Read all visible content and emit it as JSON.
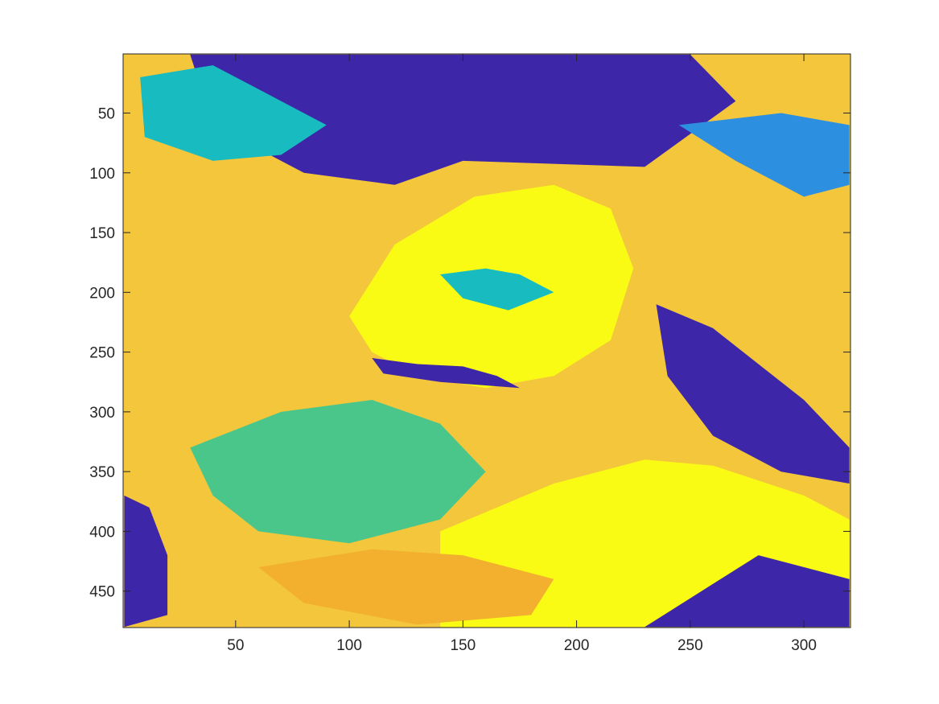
{
  "chart_data": {
    "type": "heatmap",
    "title": "",
    "xlabel": "",
    "ylabel": "",
    "xlim": [
      0.5,
      320.5
    ],
    "ylim": [
      0.5,
      480.5
    ],
    "y_direction": "reverse",
    "grid": false,
    "colormap": "parula",
    "colors": [
      "#3e26a8",
      "#2d8fe0",
      "#18bcc0",
      "#4ac68a",
      "#f2b02e",
      "#f4c63c",
      "#f9fb15"
    ],
    "xticks": [
      50,
      100,
      150,
      200,
      250,
      300
    ],
    "xtick_labels": [
      "50",
      "100",
      "150",
      "200",
      "250",
      "300"
    ],
    "yticks": [
      50,
      100,
      150,
      200,
      250,
      300,
      350,
      400,
      450
    ],
    "ytick_labels": [
      "50",
      "100",
      "150",
      "200",
      "250",
      "300",
      "350",
      "400",
      "450"
    ],
    "image_size": {
      "cols": 320,
      "rows": 480
    },
    "regions": [
      {
        "color_index": 0,
        "x": [
          30,
          60,
          120,
          160,
          200,
          250,
          270,
          230,
          150,
          120,
          80,
          40
        ],
        "y": [
          1,
          1,
          1,
          1,
          1,
          1,
          40,
          95,
          90,
          110,
          100,
          60
        ]
      },
      {
        "color_index": 2,
        "x": [
          8,
          40,
          60,
          90,
          70,
          40,
          10
        ],
        "y": [
          20,
          10,
          30,
          60,
          85,
          90,
          70
        ]
      },
      {
        "color_index": 1,
        "x": [
          245,
          290,
          320,
          320,
          300,
          270
        ],
        "y": [
          60,
          50,
          60,
          110,
          120,
          90
        ]
      },
      {
        "color_index": 6,
        "x": [
          100,
          120,
          155,
          190,
          215,
          225,
          215,
          190,
          160,
          130,
          110
        ],
        "y": [
          220,
          160,
          120,
          110,
          130,
          180,
          240,
          270,
          280,
          270,
          250
        ]
      },
      {
        "color_index": 0,
        "x": [
          235,
          260,
          280,
          300,
          320,
          320,
          290,
          260,
          240
        ],
        "y": [
          210,
          230,
          260,
          290,
          330,
          360,
          350,
          320,
          270
        ]
      },
      {
        "color_index": 0,
        "x": [
          110,
          130,
          150,
          165,
          175,
          140,
          115
        ],
        "y": [
          255,
          260,
          262,
          270,
          280,
          275,
          268
        ]
      },
      {
        "color_index": 3,
        "x": [
          30,
          70,
          110,
          140,
          160,
          140,
          100,
          60,
          40
        ],
        "y": [
          330,
          300,
          290,
          310,
          350,
          390,
          410,
          400,
          370
        ]
      },
      {
        "color_index": 6,
        "x": [
          140,
          190,
          230,
          260,
          300,
          320,
          320,
          140
        ],
        "y": [
          400,
          360,
          340,
          345,
          370,
          390,
          480,
          480
        ]
      },
      {
        "color_index": 0,
        "x": [
          1,
          12,
          20,
          20,
          1
        ],
        "y": [
          370,
          380,
          420,
          470,
          480
        ]
      },
      {
        "color_index": 0,
        "x": [
          230,
          280,
          320,
          320,
          230
        ],
        "y": [
          480,
          420,
          440,
          480,
          480
        ]
      },
      {
        "color_index": 4,
        "x": [
          60,
          110,
          150,
          190,
          180,
          130,
          80
        ],
        "y": [
          430,
          415,
          420,
          440,
          470,
          478,
          460
        ]
      },
      {
        "color_index": 2,
        "x": [
          140,
          160,
          175,
          190,
          170,
          150
        ],
        "y": [
          185,
          180,
          185,
          200,
          215,
          205
        ]
      }
    ]
  }
}
